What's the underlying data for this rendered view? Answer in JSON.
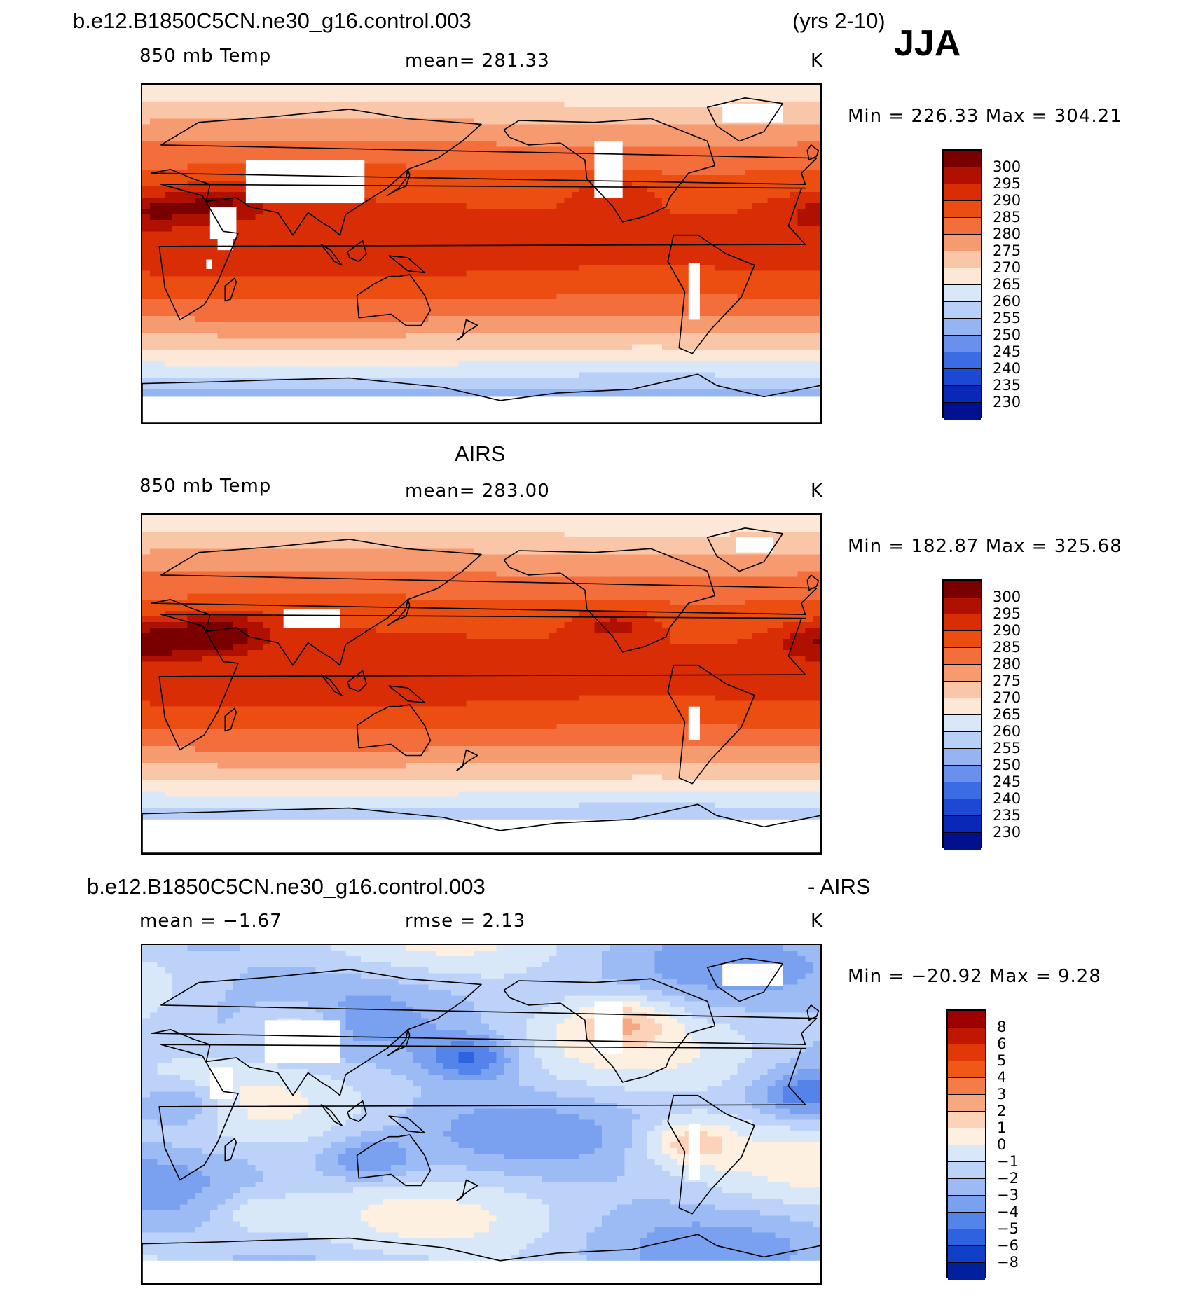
{
  "header": {
    "case_name": "b.e12.B1850C5CN.ne30_g16.control.003",
    "years": "(yrs 2-10)",
    "season": "JJA"
  },
  "panels": [
    {
      "id": "model",
      "title": "",
      "variable": "850 mb Temp",
      "stat": "mean= 281.33",
      "units": "K",
      "minmax": "Min = 226.33 Max = 304.21",
      "scale": "abs",
      "colorbar_labels": [
        "300",
        "295",
        "290",
        "285",
        "280",
        "275",
        "270",
        "265",
        "260",
        "255",
        "250",
        "245",
        "240",
        "235",
        "230"
      ]
    },
    {
      "id": "obs",
      "title": "AIRS",
      "variable": "850 mb Temp",
      "stat": "mean= 283.00",
      "units": "K",
      "minmax": "Min = 182.87 Max = 325.68",
      "scale": "abs",
      "colorbar_labels": [
        "300",
        "295",
        "290",
        "285",
        "280",
        "275",
        "270",
        "265",
        "260",
        "255",
        "250",
        "245",
        "240",
        "235",
        "230"
      ]
    },
    {
      "id": "diff",
      "title_left": "b.e12.B1850C5CN.ne30_g16.control.003",
      "title_right": "- AIRS",
      "variable": "mean =   −1.67",
      "stat": "rmse =    2.13",
      "units": "K",
      "minmax": "Min = −20.92 Max =    9.28",
      "scale": "diff",
      "colorbar_labels": [
        "8",
        "6",
        "5",
        "4",
        "3",
        "2",
        "1",
        "0",
        "−1",
        "−2",
        "−3",
        "−4",
        "−5",
        "−6",
        "−8"
      ]
    }
  ],
  "colors": {
    "abs": [
      "#7a0000",
      "#b01000",
      "#d92d05",
      "#ec4d10",
      "#f46e3c",
      "#f69a70",
      "#fac6a8",
      "#fde8d8",
      "#d8e8f8",
      "#b8d0f8",
      "#94b4f2",
      "#6890ec",
      "#3c6ce4",
      "#1c48d4",
      "#0a28b8",
      "#00108e"
    ],
    "diff": [
      "#9c0000",
      "#c01800",
      "#e03808",
      "#f05818",
      "#f47c48",
      "#f8a880",
      "#fcd2b8",
      "#fdf0e0",
      "#d8e8f8",
      "#bcd2f8",
      "#9cbaf4",
      "#7aa0f0",
      "#5484ea",
      "#2e62e0",
      "#1040c8",
      "#00209c"
    ]
  },
  "map_data": {
    "projection": "cylindrical equidistant, centered 180°",
    "fields": [
      {
        "panel": "model",
        "field": "850 mb temperature (K)",
        "season": "JJA"
      },
      {
        "panel": "obs",
        "field": "850 mb temperature (K), AIRS",
        "season": "JJA"
      },
      {
        "panel": "diff",
        "field": "model minus AIRS (K)",
        "season": "JJA"
      }
    ]
  }
}
